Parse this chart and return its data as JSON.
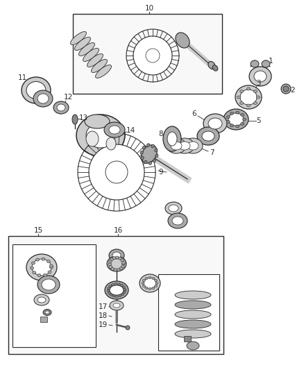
{
  "bg": "#ffffff",
  "lc": "#2a2a2a",
  "lc2": "#555555",
  "gray1": "#cccccc",
  "gray2": "#aaaaaa",
  "gray3": "#888888",
  "gray4": "#444444",
  "white": "#ffffff",
  "label_fs": 7.5,
  "fig_w": 4.38,
  "fig_h": 5.33,
  "dpi": 100
}
